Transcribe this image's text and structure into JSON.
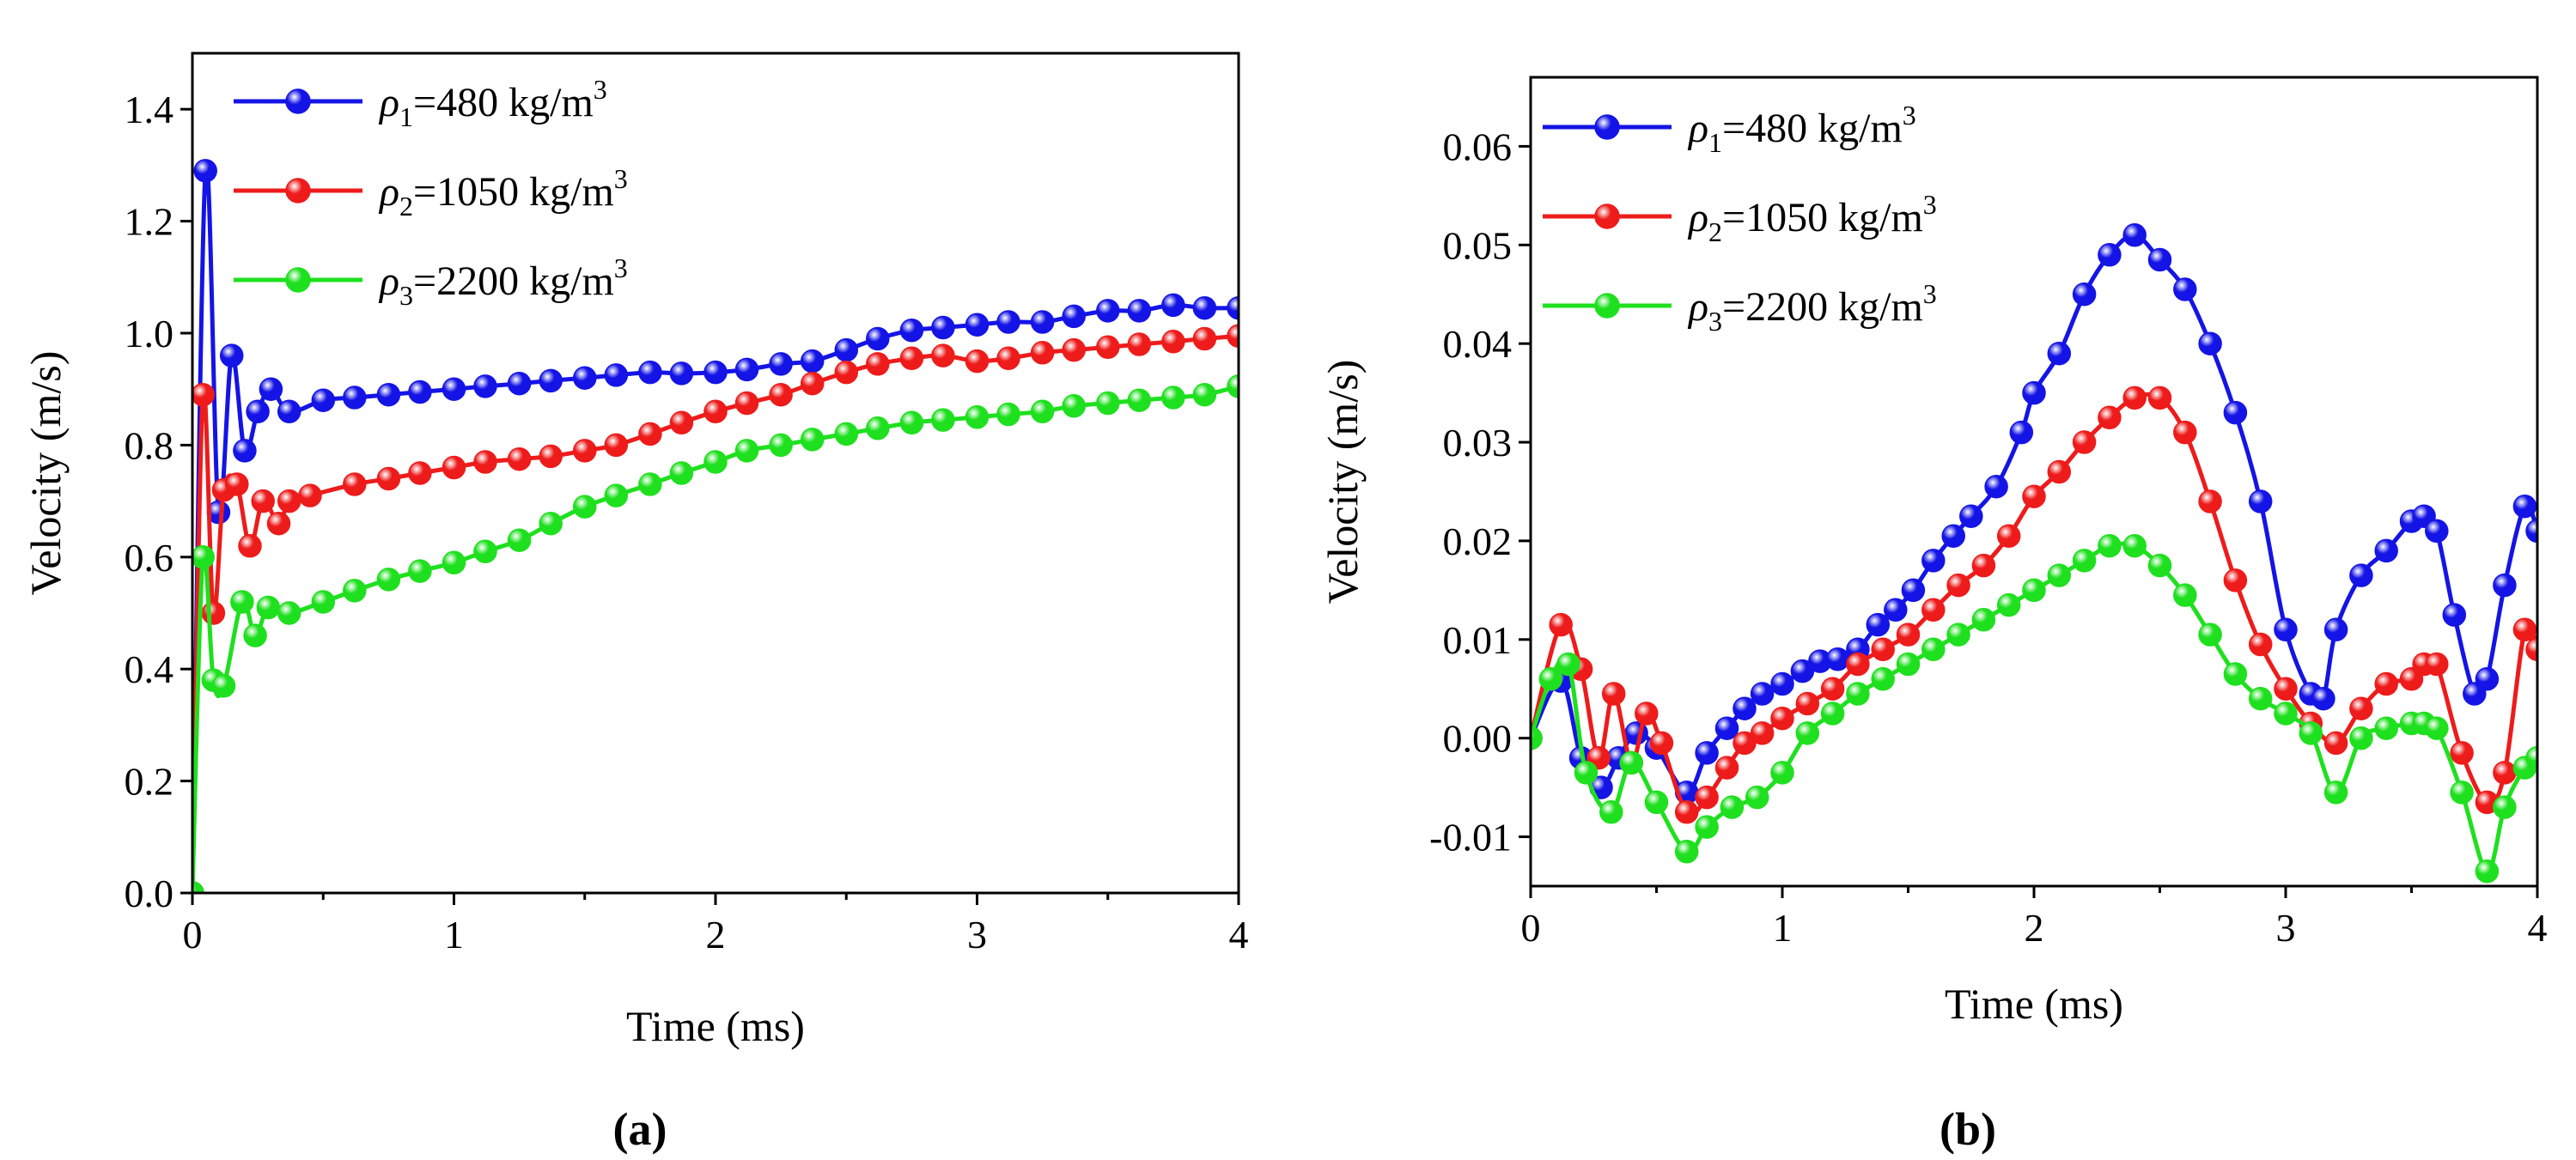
{
  "colors": {
    "blue": "#1414e6",
    "red": "#ee1b1b",
    "green": "#1ee01e"
  },
  "panel_labels": [
    "(a)",
    "(b)"
  ],
  "chart_data": [
    {
      "type": "line",
      "panel_label": "(a)",
      "xlabel": "Time (ms)",
      "ylabel": "Velocity (m/s)",
      "xlim": [
        0,
        4
      ],
      "ylim": [
        0,
        1.5
      ],
      "xticks": [
        0,
        1,
        2,
        3,
        4
      ],
      "yticks": [
        0.0,
        0.2,
        0.4,
        0.6,
        0.8,
        1.0,
        1.2,
        1.4
      ],
      "ytick_labels": [
        "0.0",
        "0.2",
        "0.4",
        "0.6",
        "0.8",
        "1.0",
        "1.2",
        "1.4"
      ],
      "legend_position": "top-left",
      "series": [
        {
          "name": "ρ1=480 kg/m3",
          "name_parts": [
            "ρ",
            "1",
            "=480 kg/m",
            "3"
          ],
          "color": "#1414e6",
          "x": [
            0,
            0.05,
            0.1,
            0.15,
            0.2,
            0.25,
            0.3,
            0.37,
            0.5,
            0.62,
            0.75,
            0.87,
            1.0,
            1.12,
            1.25,
            1.37,
            1.5,
            1.62,
            1.75,
            1.87,
            2.0,
            2.12,
            2.25,
            2.37,
            2.5,
            2.62,
            2.75,
            2.87,
            3.0,
            3.12,
            3.25,
            3.37,
            3.5,
            3.62,
            3.75,
            3.87,
            4.0
          ],
          "y": [
            0,
            1.29,
            0.68,
            0.96,
            0.79,
            0.86,
            0.9,
            0.86,
            0.88,
            0.885,
            0.89,
            0.895,
            0.9,
            0.905,
            0.91,
            0.915,
            0.92,
            0.925,
            0.93,
            0.928,
            0.93,
            0.935,
            0.945,
            0.95,
            0.97,
            0.99,
            1.005,
            1.01,
            1.015,
            1.02,
            1.02,
            1.03,
            1.04,
            1.04,
            1.05,
            1.045,
            1.045
          ]
        },
        {
          "name": "ρ2=1050 kg/m3",
          "name_parts": [
            "ρ",
            "2",
            "=1050 kg/m",
            "3"
          ],
          "color": "#ee1b1b",
          "x": [
            0,
            0.04,
            0.08,
            0.12,
            0.17,
            0.22,
            0.27,
            0.33,
            0.37,
            0.45,
            0.62,
            0.75,
            0.87,
            1.0,
            1.12,
            1.25,
            1.37,
            1.5,
            1.62,
            1.75,
            1.87,
            2.0,
            2.12,
            2.25,
            2.37,
            2.5,
            2.62,
            2.75,
            2.87,
            3.0,
            3.12,
            3.25,
            3.37,
            3.5,
            3.62,
            3.75,
            3.87,
            4.0
          ],
          "y": [
            0,
            0.89,
            0.5,
            0.72,
            0.73,
            0.62,
            0.7,
            0.66,
            0.7,
            0.71,
            0.73,
            0.74,
            0.75,
            0.76,
            0.77,
            0.775,
            0.78,
            0.79,
            0.8,
            0.82,
            0.84,
            0.86,
            0.875,
            0.89,
            0.91,
            0.93,
            0.945,
            0.955,
            0.96,
            0.95,
            0.955,
            0.965,
            0.97,
            0.975,
            0.98,
            0.985,
            0.99,
            0.995
          ]
        },
        {
          "name": "ρ3=2200 kg/m3",
          "name_parts": [
            "ρ",
            "3",
            "=2200 kg/m",
            "3"
          ],
          "color": "#1ee01e",
          "x": [
            0,
            0.04,
            0.08,
            0.12,
            0.19,
            0.24,
            0.29,
            0.37,
            0.5,
            0.62,
            0.75,
            0.87,
            1.0,
            1.12,
            1.25,
            1.37,
            1.5,
            1.62,
            1.75,
            1.87,
            2.0,
            2.12,
            2.25,
            2.37,
            2.5,
            2.62,
            2.75,
            2.87,
            3.0,
            3.12,
            3.25,
            3.37,
            3.5,
            3.62,
            3.75,
            3.87,
            4.0
          ],
          "y": [
            0,
            0.6,
            0.38,
            0.37,
            0.52,
            0.46,
            0.51,
            0.5,
            0.52,
            0.54,
            0.56,
            0.575,
            0.59,
            0.61,
            0.63,
            0.66,
            0.69,
            0.71,
            0.73,
            0.75,
            0.77,
            0.79,
            0.8,
            0.81,
            0.82,
            0.83,
            0.84,
            0.845,
            0.85,
            0.855,
            0.86,
            0.87,
            0.875,
            0.88,
            0.885,
            0.89,
            0.905
          ]
        }
      ]
    },
    {
      "type": "line",
      "panel_label": "(b)",
      "xlabel": "Time (ms)",
      "ylabel": "Velocity (m/s)",
      "xlim": [
        0,
        4
      ],
      "ylim": [
        -0.015,
        0.067
      ],
      "xticks": [
        0,
        1,
        2,
        3,
        4
      ],
      "yticks": [
        -0.01,
        0.0,
        0.01,
        0.02,
        0.03,
        0.04,
        0.05,
        0.06
      ],
      "ytick_labels": [
        "-0.01",
        "0.00",
        "0.01",
        "0.02",
        "0.03",
        "0.04",
        "0.05",
        "0.06"
      ],
      "legend_position": "top-left",
      "series": [
        {
          "name": "ρ1=480 kg/m3",
          "name_parts": [
            "ρ",
            "1",
            "=480 kg/m",
            "3"
          ],
          "color": "#1414e6",
          "x": [
            0,
            0.12,
            0.2,
            0.28,
            0.35,
            0.42,
            0.5,
            0.62,
            0.7,
            0.78,
            0.85,
            0.92,
            1.0,
            1.08,
            1.15,
            1.22,
            1.3,
            1.38,
            1.45,
            1.52,
            1.6,
            1.68,
            1.75,
            1.85,
            1.95,
            2.0,
            2.1,
            2.2,
            2.3,
            2.4,
            2.5,
            2.6,
            2.7,
            2.8,
            2.9,
            3.0,
            3.1,
            3.15,
            3.2,
            3.3,
            3.4,
            3.5,
            3.55,
            3.6,
            3.67,
            3.75,
            3.8,
            3.87,
            3.95,
            4.0
          ],
          "y": [
            0,
            0.0058,
            -0.002,
            -0.005,
            -0.002,
            0.0005,
            -0.001,
            -0.0055,
            -0.0015,
            0.001,
            0.003,
            0.0045,
            0.0055,
            0.0068,
            0.0078,
            0.008,
            0.009,
            0.0115,
            0.013,
            0.015,
            0.018,
            0.0205,
            0.0225,
            0.0255,
            0.031,
            0.035,
            0.039,
            0.045,
            0.049,
            0.051,
            0.0485,
            0.0455,
            0.04,
            0.033,
            0.024,
            0.011,
            0.0045,
            0.004,
            0.011,
            0.0165,
            0.019,
            0.022,
            0.0225,
            0.021,
            0.0125,
            0.0045,
            0.006,
            0.0155,
            0.0235,
            0.021
          ]
        },
        {
          "name": "ρ2=1050 kg/m3",
          "name_parts": [
            "ρ",
            "2",
            "=1050 kg/m",
            "3"
          ],
          "color": "#ee1b1b",
          "x": [
            0,
            0.12,
            0.2,
            0.27,
            0.33,
            0.4,
            0.46,
            0.52,
            0.62,
            0.7,
            0.78,
            0.85,
            0.92,
            1.0,
            1.1,
            1.2,
            1.3,
            1.4,
            1.5,
            1.6,
            1.7,
            1.8,
            1.9,
            2.0,
            2.1,
            2.2,
            2.3,
            2.4,
            2.5,
            2.6,
            2.7,
            2.8,
            2.9,
            3.0,
            3.1,
            3.2,
            3.3,
            3.4,
            3.5,
            3.55,
            3.6,
            3.7,
            3.8,
            3.87,
            3.95,
            4.0
          ],
          "y": [
            0,
            0.0115,
            0.007,
            -0.002,
            0.0045,
            -0.0025,
            0.0025,
            -0.0005,
            -0.0075,
            -0.006,
            -0.003,
            -0.0005,
            0.0005,
            0.002,
            0.0035,
            0.005,
            0.0075,
            0.009,
            0.0105,
            0.013,
            0.0155,
            0.0175,
            0.0205,
            0.0245,
            0.027,
            0.03,
            0.0325,
            0.0345,
            0.0345,
            0.031,
            0.024,
            0.016,
            0.0095,
            0.005,
            0.0015,
            -0.0005,
            0.003,
            0.0055,
            0.006,
            0.0075,
            0.0075,
            -0.0015,
            -0.0065,
            -0.0035,
            0.011,
            0.009
          ]
        },
        {
          "name": "ρ3=2200 kg/m3",
          "name_parts": [
            "ρ",
            "3",
            "=2200 kg/m",
            "3"
          ],
          "color": "#1ee01e",
          "x": [
            0,
            0.08,
            0.15,
            0.22,
            0.32,
            0.4,
            0.5,
            0.62,
            0.7,
            0.8,
            0.9,
            1.0,
            1.1,
            1.2,
            1.3,
            1.4,
            1.5,
            1.6,
            1.7,
            1.8,
            1.9,
            2.0,
            2.1,
            2.2,
            2.3,
            2.4,
            2.5,
            2.6,
            2.7,
            2.8,
            2.9,
            3.0,
            3.1,
            3.2,
            3.3,
            3.4,
            3.5,
            3.55,
            3.6,
            3.7,
            3.8,
            3.87,
            3.95,
            4.0
          ],
          "y": [
            0,
            0.006,
            0.0075,
            -0.0035,
            -0.0075,
            -0.0025,
            -0.0065,
            -0.0115,
            -0.009,
            -0.007,
            -0.006,
            -0.0035,
            0.0005,
            0.0025,
            0.0045,
            0.006,
            0.0075,
            0.009,
            0.0105,
            0.012,
            0.0135,
            0.015,
            0.0165,
            0.018,
            0.0195,
            0.0195,
            0.0175,
            0.0145,
            0.0105,
            0.0065,
            0.004,
            0.0025,
            0.0005,
            -0.0055,
            0,
            0.001,
            0.0015,
            0.0015,
            0.001,
            -0.0055,
            -0.0135,
            -0.007,
            -0.003,
            -0.002
          ]
        }
      ]
    }
  ]
}
